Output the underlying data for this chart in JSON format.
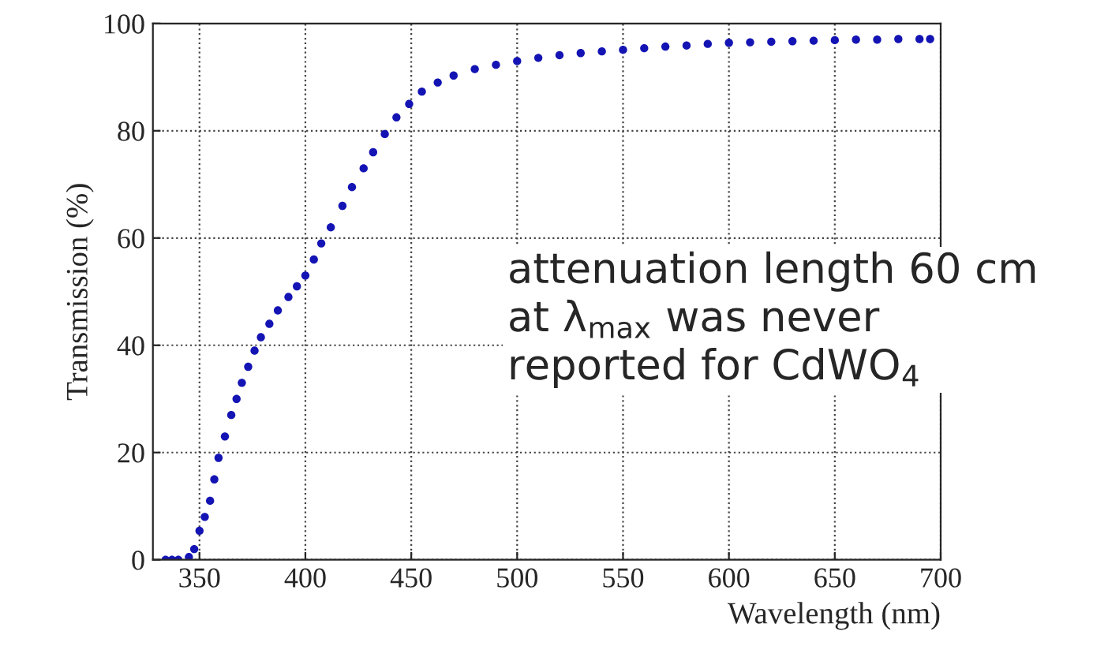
{
  "chart_data": {
    "type": "scatter",
    "xlabel": "Wavelength (nm)",
    "ylabel": "Transmission (%)",
    "x": [
      334,
      337,
      340,
      345,
      347.5,
      350,
      352.5,
      355,
      357,
      359,
      362,
      365,
      367.5,
      370,
      373,
      376,
      379,
      383,
      387,
      392,
      396,
      400,
      404,
      407.5,
      412,
      417.5,
      422,
      427.5,
      432,
      437.5,
      443,
      449,
      455,
      462.5,
      470,
      480,
      490,
      500,
      510,
      520,
      530,
      540,
      550,
      560,
      570,
      580,
      590,
      600,
      610,
      620,
      630,
      640,
      650,
      660,
      670,
      680,
      690,
      695
    ],
    "series": [
      {
        "color": "#1414b4",
        "values": [
          0,
          0,
          0,
          0.5,
          2,
          5.4,
          8,
          11,
          15,
          19,
          23,
          27,
          30,
          33,
          36,
          39,
          41.5,
          44,
          46.5,
          49,
          51,
          53,
          56,
          59,
          62,
          66,
          69.5,
          73,
          76,
          79.4,
          82.5,
          85,
          87.3,
          89,
          90.3,
          91.5,
          92.3,
          93,
          93.6,
          94.1,
          94.5,
          94.8,
          95.1,
          95.4,
          95.7,
          95.9,
          96.2,
          96.4,
          96.5,
          96.6,
          96.7,
          96.8,
          96.9,
          97,
          97,
          97.1,
          97.1,
          97.1
        ]
      }
    ],
    "xlim": [
      328,
      700
    ],
    "xticks": [
      350,
      400,
      450,
      500,
      550,
      600,
      650,
      700
    ],
    "ylim": [
      0,
      100
    ],
    "yticks": [
      0,
      20,
      40,
      60,
      80,
      100
    ],
    "grid": true,
    "marker": "circle",
    "annotations": [
      "attenuation length 60 cm\nat λ$_{max}$ was never\nreported for CdWO$_{4}$"
    ]
  }
}
